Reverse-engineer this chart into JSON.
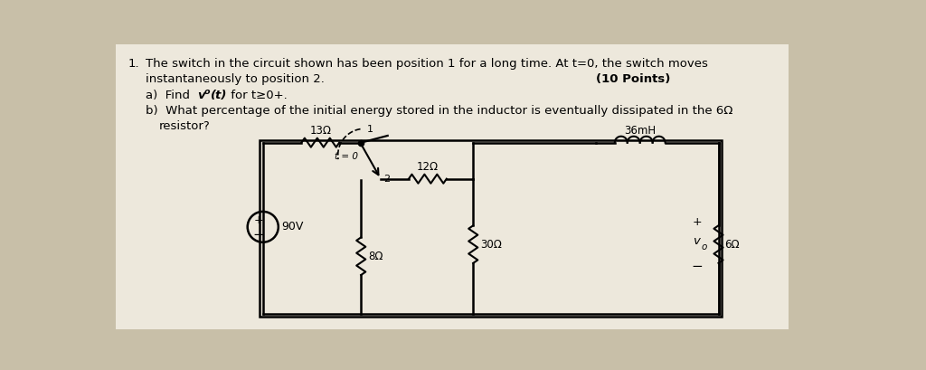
{
  "bg_color": "#c8bfa8",
  "paper_color": "#ede8dc",
  "title_line1": "The switch in the circuit shown has been position 1 for a long time. At t=0, the switch moves",
  "title_line2": "instantaneously to position 2.",
  "points_text": "(10 Points)",
  "part_a_prefix": "a)  Find ",
  "part_a_v": "v",
  "part_a_sub": "o",
  "part_a_suffix": "(t) for t≥0+.",
  "part_b": "b)  What percentage of the initial energy stored in the inductor is eventually dissipated in the 6Ω",
  "part_b2": "resistor?",
  "item_num": "1.",
  "resistor_13": "13Ω",
  "resistor_12": "12Ω",
  "inductor_36": "36mH",
  "resistor_8": "8Ω",
  "resistor_30": "30Ω",
  "resistor_6": "6Ω",
  "voltage_source": "90V",
  "switch_t": "t = 0",
  "pos1": "1",
  "pos2": "2",
  "v0_v": "v",
  "v0_sub": "o",
  "plus_top": "+",
  "minus_bot": "−",
  "src_plus": "+",
  "src_minus": "−"
}
